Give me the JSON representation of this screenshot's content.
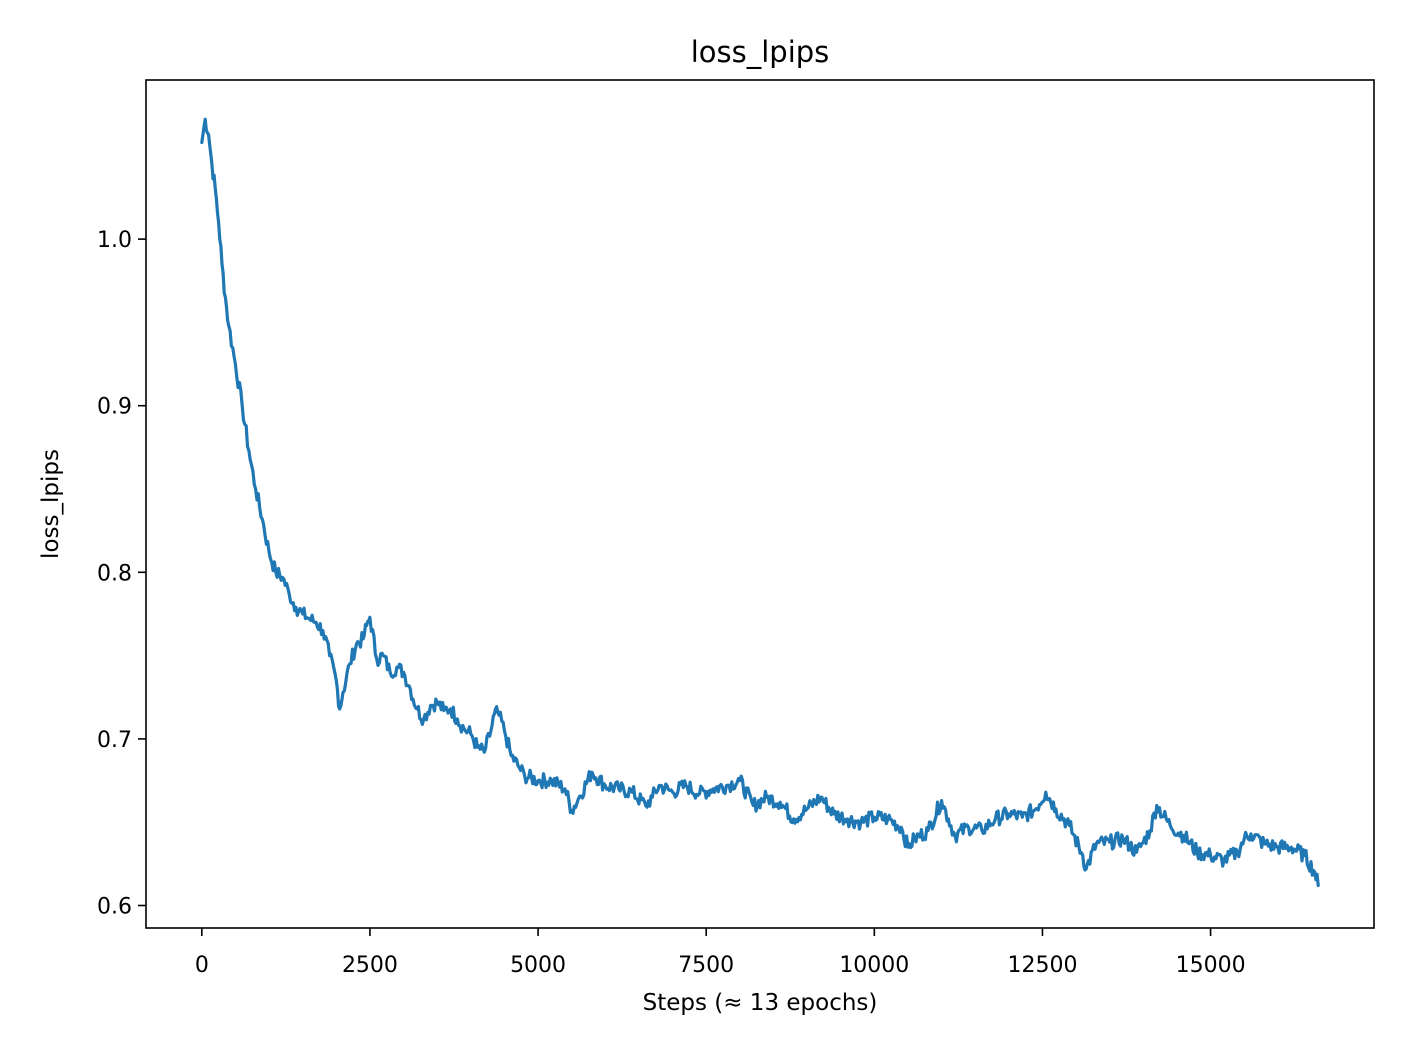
{
  "chart_data": {
    "type": "line",
    "title": "loss_lpips",
    "xlabel": "Steps (≈ 13 epochs)",
    "ylabel": "loss_lpips",
    "xlim": [
      -830,
      17430
    ],
    "ylim": [
      0.5865,
      1.0955
    ],
    "xticks": [
      0,
      2500,
      5000,
      7500,
      10000,
      12500,
      15000
    ],
    "xtick_labels": [
      "0",
      "2500",
      "5000",
      "7500",
      "10000",
      "12500",
      "15000"
    ],
    "yticks": [
      0.6,
      0.7,
      0.8,
      0.9,
      1.0
    ],
    "ytick_labels": [
      "0.6",
      "0.7",
      "0.8",
      "0.9",
      "1.0"
    ],
    "grid": false,
    "legend": "none",
    "series": [
      {
        "color": "#1f77b4",
        "x": [
          0,
          50,
          100,
          150,
          200,
          250,
          300,
          350,
          400,
          500,
          600,
          700,
          800,
          900,
          1000,
          1100,
          1200,
          1300,
          1400,
          1500,
          1600,
          1700,
          1800,
          1900,
          2000,
          2050,
          2100,
          2200,
          2300,
          2400,
          2450,
          2500,
          2600,
          2700,
          2800,
          2900,
          3000,
          3100,
          3200,
          3300,
          3400,
          3500,
          3600,
          3700,
          3800,
          3900,
          4000,
          4100,
          4200,
          4300,
          4350,
          4400,
          4500,
          4600,
          4700,
          4800,
          5000,
          5200,
          5400,
          5500,
          5600,
          5800,
          6000,
          6200,
          6400,
          6600,
          6700,
          6800,
          7000,
          7200,
          7400,
          7600,
          7800,
          8000,
          8200,
          8400,
          8600,
          8800,
          9000,
          9200,
          9400,
          9600,
          9800,
          10000,
          10200,
          10400,
          10500,
          10600,
          10800,
          11000,
          11100,
          11200,
          11400,
          11600,
          11800,
          12000,
          12200,
          12400,
          12550,
          12700,
          12900,
          13100,
          13150,
          13300,
          13500,
          13700,
          13900,
          14000,
          14100,
          14200,
          14400,
          14600,
          14800,
          15000,
          15200,
          15400,
          15500,
          15600,
          15800,
          16000,
          16200,
          16400,
          16550,
          16600
        ],
        "y": [
          1.058,
          1.072,
          1.063,
          1.045,
          1.03,
          1.01,
          0.985,
          0.965,
          0.948,
          0.925,
          0.9,
          0.873,
          0.85,
          0.832,
          0.812,
          0.8,
          0.797,
          0.787,
          0.779,
          0.775,
          0.772,
          0.77,
          0.765,
          0.75,
          0.735,
          0.718,
          0.728,
          0.745,
          0.757,
          0.76,
          0.768,
          0.773,
          0.748,
          0.75,
          0.74,
          0.743,
          0.74,
          0.73,
          0.718,
          0.712,
          0.72,
          0.722,
          0.717,
          0.718,
          0.712,
          0.706,
          0.703,
          0.695,
          0.692,
          0.705,
          0.715,
          0.716,
          0.705,
          0.69,
          0.684,
          0.678,
          0.675,
          0.675,
          0.67,
          0.657,
          0.664,
          0.68,
          0.672,
          0.67,
          0.668,
          0.66,
          0.665,
          0.672,
          0.668,
          0.672,
          0.667,
          0.67,
          0.672,
          0.675,
          0.66,
          0.665,
          0.662,
          0.652,
          0.658,
          0.665,
          0.655,
          0.652,
          0.65,
          0.653,
          0.652,
          0.647,
          0.635,
          0.64,
          0.645,
          0.663,
          0.652,
          0.642,
          0.647,
          0.645,
          0.652,
          0.655,
          0.653,
          0.658,
          0.668,
          0.658,
          0.648,
          0.63,
          0.622,
          0.637,
          0.638,
          0.64,
          0.632,
          0.638,
          0.645,
          0.66,
          0.648,
          0.642,
          0.632,
          0.63,
          0.627,
          0.632,
          0.64,
          0.643,
          0.637,
          0.635,
          0.635,
          0.63,
          0.62,
          0.612
        ]
      }
    ]
  }
}
